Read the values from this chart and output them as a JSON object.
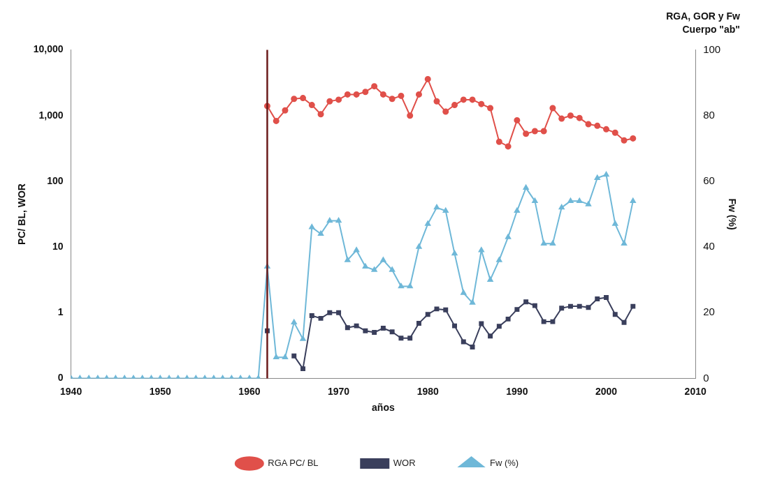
{
  "chart_data": {
    "type": "line",
    "title": "RGA, GOR y Fw",
    "subtitle": "Cuerpo \"ab\"",
    "xlabel": "años",
    "ylabel": "PC/ BL, WOR",
    "y2label": "Fw (%)",
    "xlim": [
      1940,
      2010
    ],
    "xticks": [
      1940,
      1950,
      1960,
      1970,
      1980,
      1990,
      2000,
      2010
    ],
    "ylim": [
      0.1,
      10000
    ],
    "yticks": [
      {
        "value": 0.1,
        "label": "0"
      },
      1,
      10,
      100,
      {
        "value": 1000,
        "label": "1,000"
      },
      {
        "value": 10000,
        "label": "10,000"
      }
    ],
    "y2lim": [
      0,
      100
    ],
    "y2ticks": [
      0,
      20,
      40,
      60,
      80,
      100
    ],
    "log": "y",
    "grid": false,
    "legend": "bottom",
    "line_style": "solid",
    "ref_lines": [
      {
        "axis": "x",
        "value": 1962,
        "color": "#6b1a1a"
      }
    ],
    "series": [
      {
        "name": "RGA PC/ BL",
        "color": "#e0504a",
        "marker": "circle",
        "x": [
          1962,
          1963,
          1964,
          1965,
          1966,
          1967,
          1968,
          1969,
          1970,
          1971,
          1972,
          1973,
          1974,
          1975,
          1976,
          1977,
          1978,
          1979,
          1980,
          1981,
          1982,
          1983,
          1984,
          1985,
          1986,
          1987,
          1988,
          1989,
          1990,
          1991,
          1992,
          1993,
          1994,
          1995,
          1996,
          1997,
          1998,
          1999,
          2000,
          2001,
          2002,
          2003
        ],
        "values": [
          1400,
          830,
          1200,
          1800,
          1850,
          1450,
          1050,
          1650,
          1750,
          2100,
          2100,
          2300,
          2800,
          2100,
          1800,
          2000,
          1000,
          2100,
          3600,
          1650,
          1150,
          1450,
          1750,
          1750,
          1500,
          1300,
          400,
          340,
          850,
          530,
          580,
          580,
          1300,
          900,
          1000,
          920,
          740,
          700,
          620,
          550,
          420,
          450
        ]
      },
      {
        "name": "WOR",
        "color": "#3a3f5c",
        "marker": "square",
        "x": [
          1962,
          1963,
          1964,
          1965,
          1966,
          1967,
          1968,
          1969,
          1970,
          1971,
          1972,
          1973,
          1974,
          1975,
          1976,
          1977,
          1978,
          1979,
          1980,
          1981,
          1982,
          1983,
          1984,
          1985,
          1986,
          1987,
          1988,
          1989,
          1990,
          1991,
          1992,
          1993,
          1994,
          1995,
          1996,
          1997,
          1998,
          1999,
          2000,
          2001,
          2002,
          2003
        ],
        "values": [
          0.53,
          null,
          null,
          0.22,
          0.14,
          0.9,
          0.82,
          1,
          1,
          0.59,
          0.63,
          0.53,
          0.5,
          0.58,
          0.51,
          0.41,
          0.41,
          0.69,
          0.94,
          1.14,
          1.1,
          0.63,
          0.36,
          0.3,
          0.68,
          0.44,
          0.62,
          0.8,
          1.12,
          1.46,
          1.28,
          0.73,
          0.73,
          1.17,
          1.25,
          1.25,
          1.2,
          1.62,
          1.7,
          0.94,
          0.71,
          1.25
        ]
      },
      {
        "name": "Fw (%)",
        "color": "#6fb8d8",
        "marker": "triangle",
        "axis": "y2",
        "x": [
          1940,
          1941,
          1942,
          1943,
          1944,
          1945,
          1946,
          1947,
          1948,
          1949,
          1950,
          1951,
          1952,
          1953,
          1954,
          1955,
          1956,
          1957,
          1958,
          1959,
          1960,
          1961,
          1962,
          1963,
          1964,
          1965,
          1966,
          1967,
          1968,
          1969,
          1970,
          1971,
          1972,
          1973,
          1974,
          1975,
          1976,
          1977,
          1978,
          1979,
          1980,
          1981,
          1982,
          1983,
          1984,
          1985,
          1986,
          1987,
          1988,
          1989,
          1990,
          1991,
          1992,
          1993,
          1994,
          1995,
          1996,
          1997,
          1998,
          1999,
          2000,
          2001,
          2002,
          2003
        ],
        "values": [
          0,
          0,
          0,
          0,
          0,
          0,
          0,
          0,
          0,
          0,
          0,
          0,
          0,
          0,
          0,
          0,
          0,
          0,
          0,
          0,
          0,
          0,
          34,
          6.4,
          6.4,
          17,
          12,
          46,
          44,
          48,
          48,
          36,
          39,
          34,
          33,
          36,
          33,
          28,
          28,
          40,
          47,
          52,
          51,
          38,
          26,
          23,
          39,
          30,
          36,
          43,
          51,
          58,
          54,
          41,
          41,
          52,
          54,
          54,
          53,
          61,
          62,
          47,
          41,
          54
        ]
      }
    ]
  }
}
